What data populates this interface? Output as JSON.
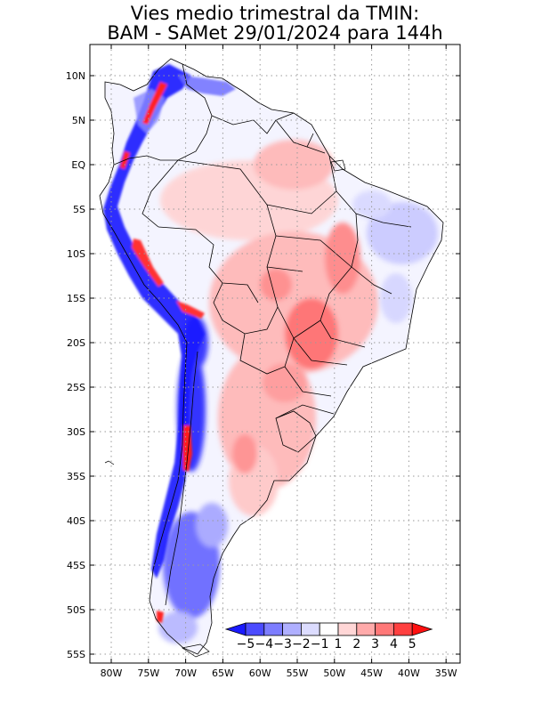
{
  "title": {
    "line1": "Vies medio trimestral da TMIN:",
    "line2": "BAM - SAMet 29/01/2024  para 144h"
  },
  "axes": {
    "lat_labels": [
      "10N",
      "5N",
      "EQ",
      "5S",
      "10S",
      "15S",
      "20S",
      "25S",
      "30S",
      "35S",
      "40S",
      "45S",
      "50S",
      "55S"
    ],
    "lon_labels": [
      "80W",
      "75W",
      "70W",
      "65W",
      "60W",
      "55W",
      "50W",
      "45W",
      "40W",
      "35W"
    ],
    "lat_range": [
      -55.5,
      13.5
    ],
    "lon_range": [
      -83,
      -34.5
    ],
    "grid": true
  },
  "colorbar": {
    "labels": [
      "-5",
      "-4",
      "-3",
      "-2",
      "-1",
      "1",
      "2",
      "3",
      "4",
      "5"
    ],
    "colors": [
      "#1a1aff",
      "#4b4bff",
      "#7d7dff",
      "#afafff",
      "#dcdcff",
      "#ffffff",
      "#ffd6d6",
      "#ffaaaa",
      "#ff7878",
      "#ff4040",
      "#ff1010"
    ]
  },
  "colors": {
    "land_neutral": "#ffffff",
    "ocean": "#ffffff",
    "coast": "#000000"
  }
}
